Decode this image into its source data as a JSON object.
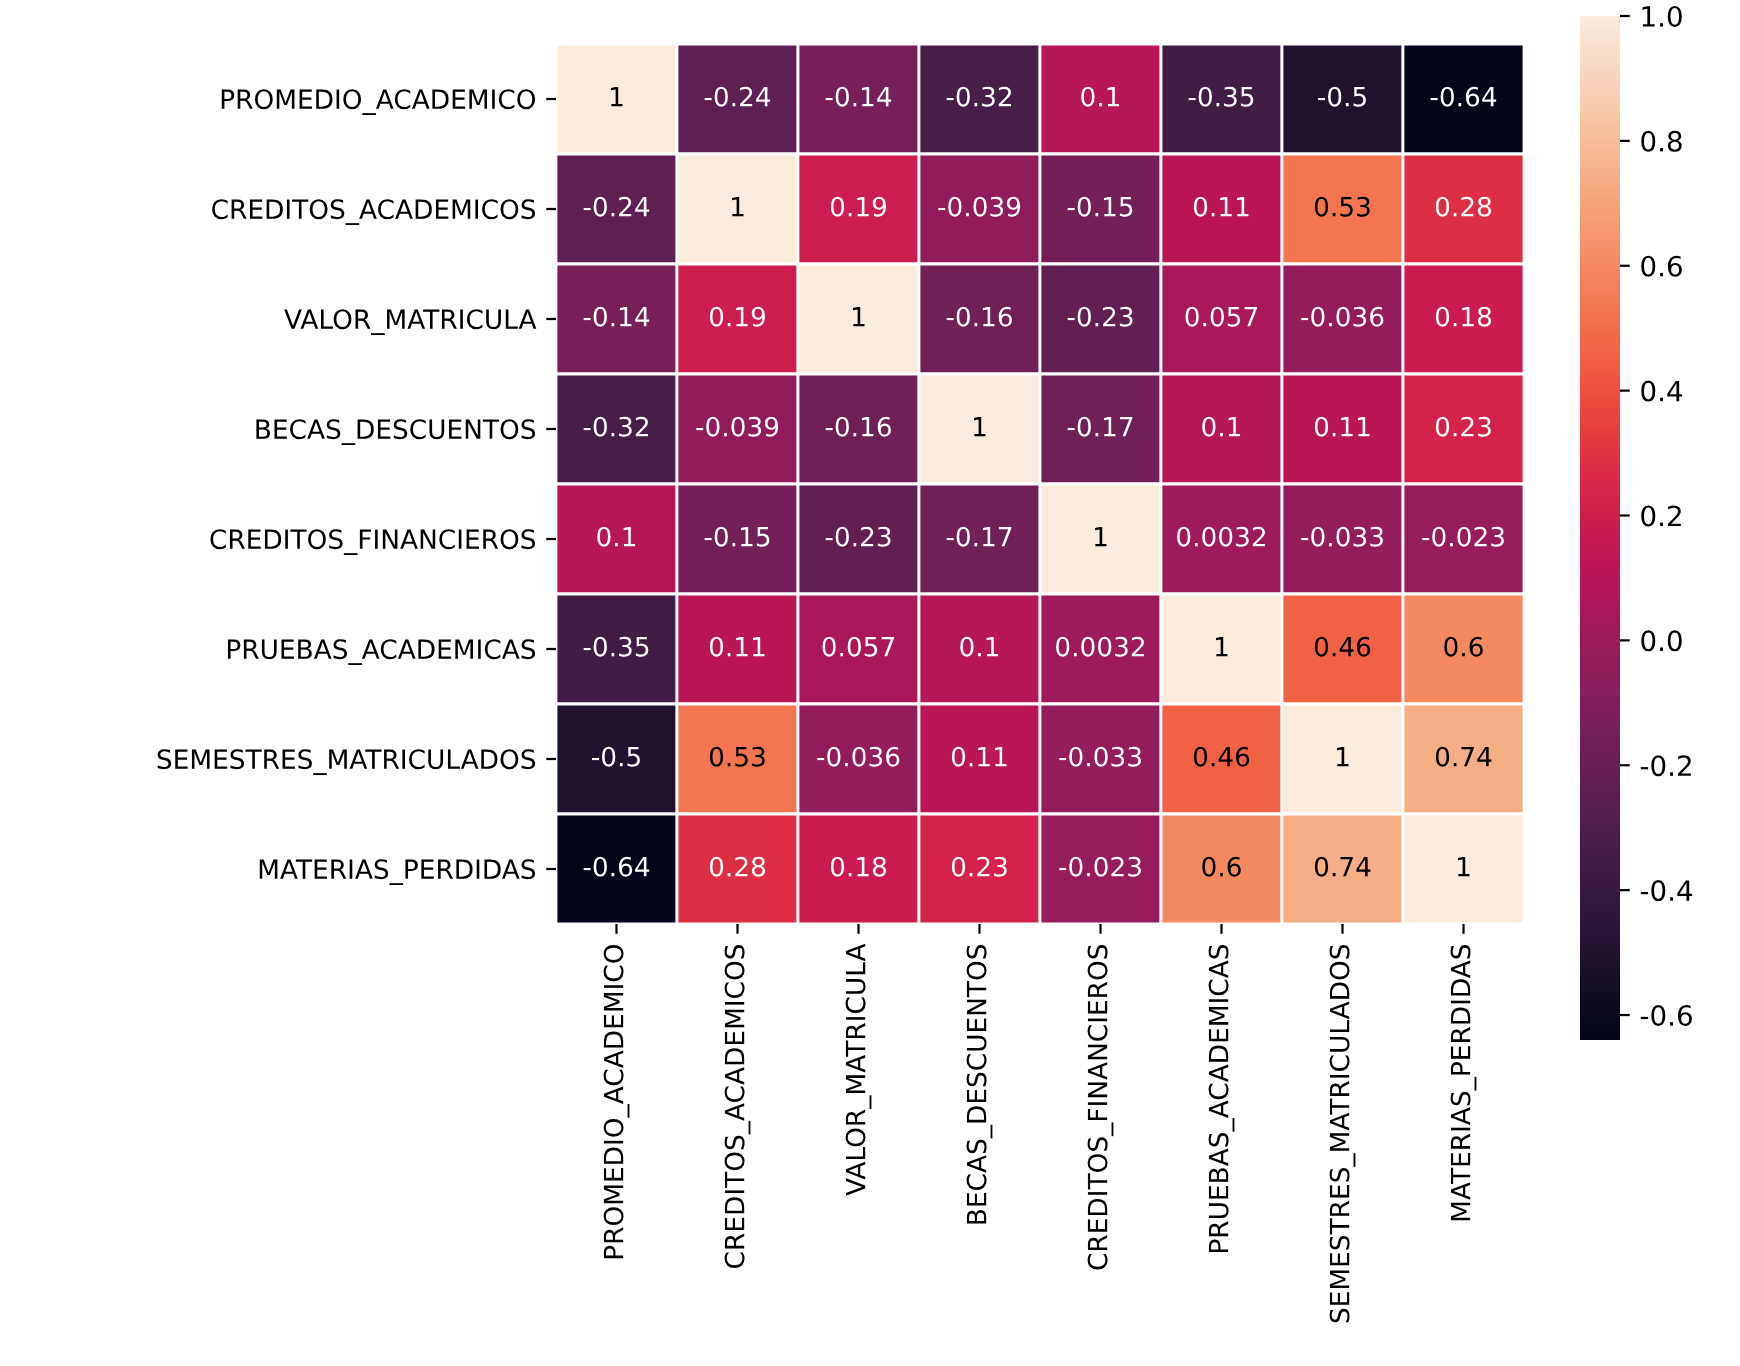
{
  "chart_data": {
    "type": "heatmap",
    "categories": [
      "PROMEDIO_ACADEMICO",
      "CREDITOS_ACADEMICOS",
      "VALOR_MATRICULA",
      "BECAS_DESCUENTOS",
      "CREDITOS_FINANCIEROS",
      "PRUEBAS_ACADEMICAS",
      "SEMESTRES_MATRICULADOS",
      "MATERIAS_PERDIDAS"
    ],
    "y_categories": [
      "PROMEDIO_ACADEMICO",
      "CREDITOS_ACADEMICOS",
      "VALOR_MATRICULA",
      "BECAS_DESCUENTOS",
      "CREDITOS_FINANCIEROS",
      "PRUEBAS_ACADEMICAS",
      "SEMESTRES_MATRICULADOS",
      "MATERIAS_PERDIDAS"
    ],
    "cells": [
      [
        1,
        -0.24,
        -0.14,
        -0.32,
        0.1,
        -0.35,
        -0.5,
        -0.64
      ],
      [
        -0.24,
        1,
        0.19,
        -0.039,
        -0.15,
        0.11,
        0.53,
        0.28
      ],
      [
        -0.14,
        0.19,
        1,
        -0.16,
        -0.23,
        0.057,
        -0.036,
        0.18
      ],
      [
        -0.32,
        -0.039,
        -0.16,
        1,
        -0.17,
        0.1,
        0.11,
        0.23
      ],
      [
        0.1,
        -0.15,
        -0.23,
        -0.17,
        1,
        0.0032,
        -0.033,
        -0.023
      ],
      [
        -0.35,
        0.11,
        0.057,
        0.1,
        0.0032,
        1,
        0.46,
        0.6
      ],
      [
        -0.5,
        0.53,
        -0.036,
        0.11,
        -0.033,
        0.46,
        1,
        0.74
      ],
      [
        -0.64,
        0.28,
        0.18,
        0.23,
        -0.023,
        0.6,
        0.74,
        1
      ]
    ],
    "data_labels": true,
    "clim": [
      -0.64,
      1
    ],
    "cticks": [
      -0.6,
      -0.4,
      -0.2,
      {
        "value": 0,
        "label": "0.0"
      },
      0.2,
      0.4,
      0.6,
      0.8,
      {
        "value": 1,
        "label": "1.0"
      }
    ]
  }
}
